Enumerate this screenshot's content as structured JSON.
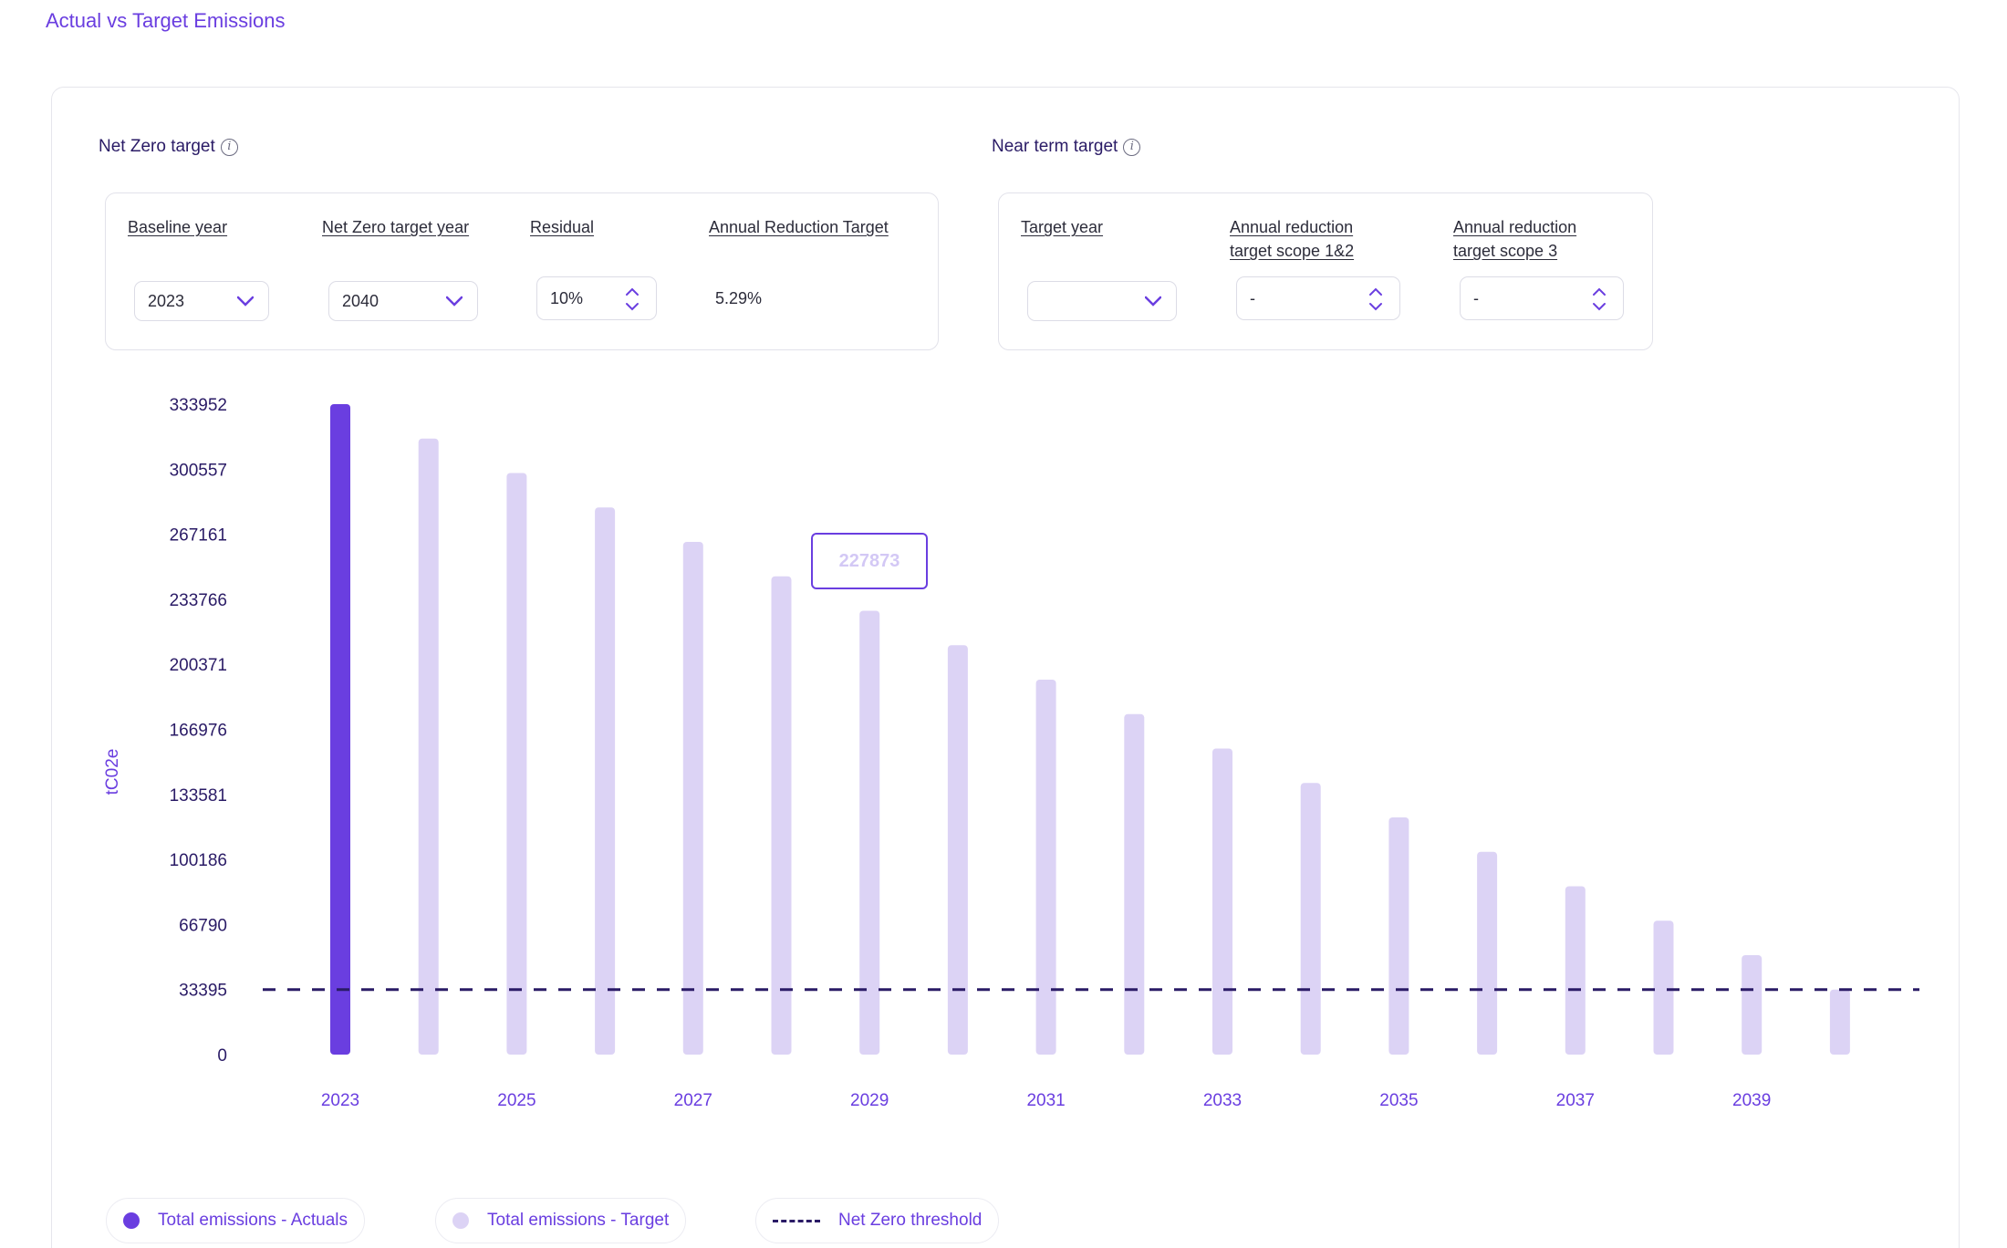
{
  "page": {
    "title": "Actual vs Target Emissions"
  },
  "net_zero": {
    "label": "Net Zero target",
    "baseline_year_label": "Baseline year",
    "baseline_year_value": "2023",
    "target_year_label": "Net Zero target year",
    "target_year_value": "2040",
    "residual_label": "Residual",
    "residual_value": "10%",
    "annual_reduction_label": "Annual Reduction Target",
    "annual_reduction_value": "5.29%"
  },
  "near_term": {
    "label": "Near term target",
    "target_year_label": "Target year",
    "target_year_value": "",
    "scope12_label_line1": "Annual reduction",
    "scope12_label_line2": "target scope 1&2",
    "scope12_value": "-",
    "scope3_label_line1": "Annual reduction",
    "scope3_label_line2": "target scope 3",
    "scope3_value": "-"
  },
  "tooltip": {
    "value": "227873"
  },
  "colors": {
    "actual": "#6a3ee0",
    "target": "#dcd3f5",
    "threshold": "#2a1b66"
  },
  "legend": {
    "actuals": "Total emissions - Actuals",
    "target": "Total emissions - Target",
    "threshold": "Net Zero threshold"
  },
  "chart_data": {
    "type": "bar",
    "ylabel": "tC02e",
    "ylim": [
      0,
      333952
    ],
    "y_ticks": [
      0,
      33395,
      66790,
      100186,
      133581,
      166976,
      200371,
      233766,
      267161,
      300557,
      333952
    ],
    "x_tick_labels": [
      "2023",
      "2025",
      "2027",
      "2029",
      "2031",
      "2033",
      "2035",
      "2037",
      "2039"
    ],
    "categories": [
      "2023",
      "2024",
      "2025",
      "2026",
      "2027",
      "2028",
      "2029",
      "2030",
      "2031",
      "2032",
      "2033",
      "2034",
      "2035",
      "2036",
      "2037",
      "2038",
      "2039",
      "2040"
    ],
    "series": [
      {
        "name": "Total emissions - Actuals",
        "values": [
          333952,
          null,
          null,
          null,
          null,
          null,
          null,
          null,
          null,
          null,
          null,
          null,
          null,
          null,
          null,
          null,
          null,
          null
        ]
      },
      {
        "name": "Total emissions - Target",
        "values": [
          null,
          316271,
          298590,
          280910,
          263229,
          245548,
          227873,
          210188,
          192507,
          174826,
          157145,
          139465,
          121784,
          104103,
          86423,
          68742,
          51061,
          33395
        ]
      }
    ],
    "threshold": {
      "name": "Net Zero threshold",
      "value": 33395
    },
    "grid": false,
    "legend_position": "bottom-left"
  }
}
